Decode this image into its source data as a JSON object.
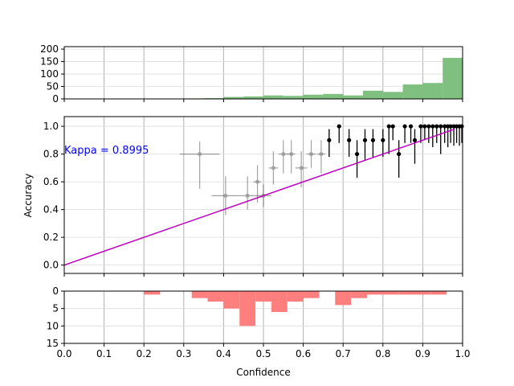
{
  "chart_data": [
    {
      "panel": "top-histogram",
      "type": "bar",
      "color": "#7fbf7f",
      "ylim": [
        0,
        210
      ],
      "yticks": [
        "0",
        "50",
        "100",
        "150",
        "200"
      ],
      "bin_width": 0.05,
      "bins": [
        {
          "x": 0.3,
          "value": 0
        },
        {
          "x": 0.35,
          "value": 2
        },
        {
          "x": 0.4,
          "value": 3
        },
        {
          "x": 0.45,
          "value": 8
        },
        {
          "x": 0.5,
          "value": 10
        },
        {
          "x": 0.55,
          "value": 14
        },
        {
          "x": 0.6,
          "value": 12
        },
        {
          "x": 0.65,
          "value": 17
        },
        {
          "x": 0.7,
          "value": 20
        },
        {
          "x": 0.75,
          "value": 14
        },
        {
          "x": 0.8,
          "value": 33
        },
        {
          "x": 0.85,
          "value": 28
        },
        {
          "x": 0.9,
          "value": 58
        },
        {
          "x": 0.95,
          "value": 64
        },
        {
          "x": 1.0,
          "value": 165
        }
      ]
    },
    {
      "panel": "reliability",
      "type": "scatter",
      "xlim": [
        0,
        1
      ],
      "ylim": [
        -0.06,
        1.07
      ],
      "ylabel": "Accuracy",
      "yticks": [
        "0.0",
        "0.2",
        "0.4",
        "0.6",
        "0.8",
        "1.0"
      ],
      "annotation": "Kappa = 0.8995",
      "annotation_color": "#0000ff",
      "fit_color": "#bf00bf",
      "fit_line": [
        [
          0.0,
          0.0
        ],
        [
          0.98,
          0.98
        ]
      ],
      "points_faint": [
        {
          "x": 0.34,
          "y": 0.8,
          "xerr": 0.05,
          "yerr_lo": 0.25,
          "yerr_hi": 0.09
        },
        {
          "x": 0.405,
          "y": 0.5,
          "xerr": 0.035,
          "yerr_lo": 0.14,
          "yerr_hi": 0.14
        },
        {
          "x": 0.46,
          "y": 0.5,
          "xerr": 0.02,
          "yerr_lo": 0.1,
          "yerr_hi": 0.14
        },
        {
          "x": 0.485,
          "y": 0.6,
          "xerr": 0.01,
          "yerr_lo": 0.15,
          "yerr_hi": 0.12
        },
        {
          "x": 0.5,
          "y": 0.5,
          "xerr": 0.02,
          "yerr_lo": 0.08,
          "yerr_hi": 0.08
        },
        {
          "x": 0.525,
          "y": 0.7,
          "xerr": 0.012,
          "yerr_lo": 0.12,
          "yerr_hi": 0.12
        },
        {
          "x": 0.55,
          "y": 0.8,
          "xerr": 0.012,
          "yerr_lo": 0.14,
          "yerr_hi": 0.1
        },
        {
          "x": 0.57,
          "y": 0.8,
          "xerr": 0.01,
          "yerr_lo": 0.14,
          "yerr_hi": 0.1
        },
        {
          "x": 0.595,
          "y": 0.7,
          "xerr": 0.015,
          "yerr_lo": 0.14,
          "yerr_hi": 0.12
        },
        {
          "x": 0.62,
          "y": 0.8,
          "xerr": 0.012,
          "yerr_lo": 0.1,
          "yerr_hi": 0.1
        },
        {
          "x": 0.645,
          "y": 0.8,
          "xerr": 0.01,
          "yerr_lo": 0.14,
          "yerr_hi": 0.1
        }
      ],
      "points_dark": [
        {
          "x": 0.665,
          "y": 0.9,
          "yerr_lo": 0.12,
          "yerr_hi": 0.08
        },
        {
          "x": 0.69,
          "y": 1.0,
          "yerr_lo": 0.12,
          "yerr_hi": 0.0
        },
        {
          "x": 0.715,
          "y": 0.9,
          "yerr_lo": 0.12,
          "yerr_hi": 0.08
        },
        {
          "x": 0.735,
          "y": 0.8,
          "yerr_lo": 0.17,
          "yerr_hi": 0.1
        },
        {
          "x": 0.755,
          "y": 0.9,
          "yerr_lo": 0.14,
          "yerr_hi": 0.08
        },
        {
          "x": 0.775,
          "y": 0.9,
          "yerr_lo": 0.12,
          "yerr_hi": 0.08
        },
        {
          "x": 0.8,
          "y": 0.9,
          "yerr_lo": 0.12,
          "yerr_hi": 0.08
        },
        {
          "x": 0.815,
          "y": 1.0,
          "yerr_lo": 0.2,
          "yerr_hi": 0.0
        },
        {
          "x": 0.825,
          "y": 1.0,
          "yerr_lo": 0.1,
          "yerr_hi": 0.0
        },
        {
          "x": 0.84,
          "y": 0.8,
          "yerr_lo": 0.17,
          "yerr_hi": 0.1
        },
        {
          "x": 0.855,
          "y": 1.0,
          "yerr_lo": 0.12,
          "yerr_hi": 0.0
        },
        {
          "x": 0.87,
          "y": 1.0,
          "yerr_lo": 0.12,
          "yerr_hi": 0.0
        },
        {
          "x": 0.88,
          "y": 0.9,
          "yerr_lo": 0.17,
          "yerr_hi": 0.08
        },
        {
          "x": 0.895,
          "y": 1.0,
          "yerr_lo": 0.12,
          "yerr_hi": 0.0
        },
        {
          "x": 0.905,
          "y": 1.0,
          "yerr_lo": 0.1,
          "yerr_hi": 0.0
        },
        {
          "x": 0.915,
          "y": 1.0,
          "yerr_lo": 0.12,
          "yerr_hi": 0.0
        },
        {
          "x": 0.925,
          "y": 1.0,
          "yerr_lo": 0.15,
          "yerr_hi": 0.0
        },
        {
          "x": 0.935,
          "y": 1.0,
          "yerr_lo": 0.12,
          "yerr_hi": 0.0
        },
        {
          "x": 0.945,
          "y": 1.0,
          "yerr_lo": 0.2,
          "yerr_hi": 0.0
        },
        {
          "x": 0.955,
          "y": 1.0,
          "yerr_lo": 0.12,
          "yerr_hi": 0.0
        },
        {
          "x": 0.963,
          "y": 1.0,
          "yerr_lo": 0.15,
          "yerr_hi": 0.0
        },
        {
          "x": 0.97,
          "y": 1.0,
          "yerr_lo": 0.12,
          "yerr_hi": 0.0
        },
        {
          "x": 0.978,
          "y": 1.0,
          "yerr_lo": 0.14,
          "yerr_hi": 0.0
        },
        {
          "x": 0.985,
          "y": 1.0,
          "yerr_lo": 0.12,
          "yerr_hi": 0.0
        },
        {
          "x": 0.992,
          "y": 1.0,
          "yerr_lo": 0.14,
          "yerr_hi": 0.0
        },
        {
          "x": 0.998,
          "y": 1.0,
          "yerr_lo": 0.12,
          "yerr_hi": 0.0
        }
      ]
    },
    {
      "panel": "bottom-histogram",
      "type": "bar",
      "color": "#ff7f7f",
      "ylim": [
        0,
        15
      ],
      "inverted": true,
      "xlabel": "Confidence",
      "yticks": [
        "0",
        "5",
        "10",
        "15"
      ],
      "xticks": [
        "0.0",
        "0.1",
        "0.2",
        "0.3",
        "0.4",
        "0.5",
        "0.6",
        "0.7",
        "0.8",
        "0.9",
        "1.0"
      ],
      "bin_width": 0.04,
      "bins": [
        {
          "x": 0.24,
          "value": 1
        },
        {
          "x": 0.36,
          "value": 2
        },
        {
          "x": 0.4,
          "value": 3
        },
        {
          "x": 0.44,
          "value": 5
        },
        {
          "x": 0.48,
          "value": 10
        },
        {
          "x": 0.52,
          "value": 3
        },
        {
          "x": 0.56,
          "value": 6
        },
        {
          "x": 0.6,
          "value": 3
        },
        {
          "x": 0.64,
          "value": 2
        },
        {
          "x": 0.72,
          "value": 4
        },
        {
          "x": 0.76,
          "value": 2
        },
        {
          "x": 0.8,
          "value": 1
        },
        {
          "x": 0.84,
          "value": 1
        },
        {
          "x": 0.88,
          "value": 1
        },
        {
          "x": 0.92,
          "value": 1
        },
        {
          "x": 0.96,
          "value": 1
        }
      ]
    }
  ]
}
